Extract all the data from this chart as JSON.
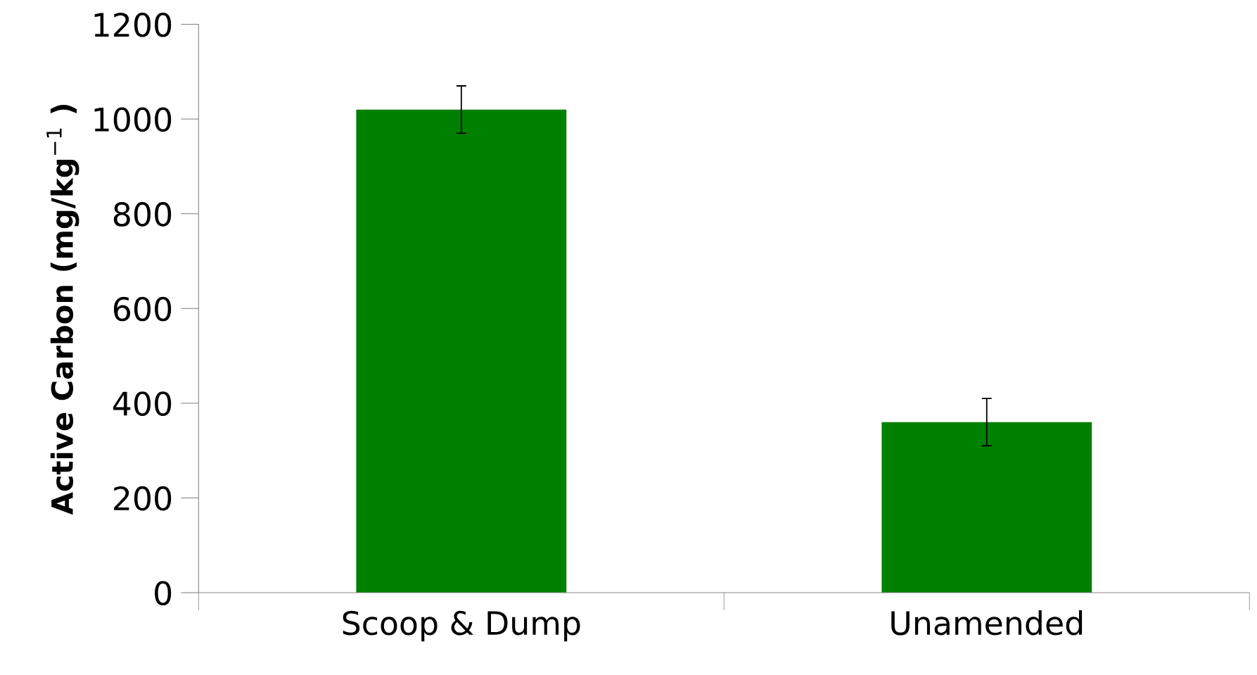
{
  "chart_data": {
    "type": "bar",
    "ylabel": "Active Carbon (mg/kg$^{−1}$ )",
    "categories": [
      "Scoop & Dump",
      "Unamended"
    ],
    "values": [
      1020,
      360
    ],
    "errors": [
      50,
      50
    ],
    "color": "#008000",
    "ylim": [
      0,
      1200
    ],
    "yticks": [
      0,
      200,
      400,
      600,
      800,
      1000,
      1200
    ],
    "grid": false,
    "legend": false
  }
}
